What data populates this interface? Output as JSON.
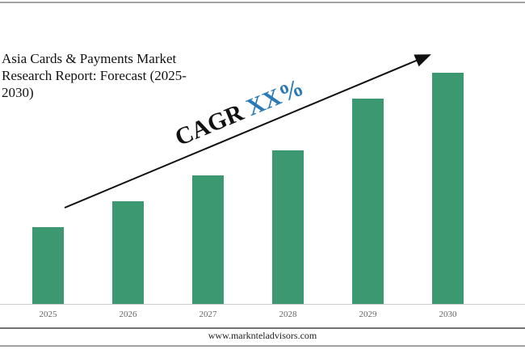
{
  "chart_data": {
    "type": "bar",
    "title": "Asia Cards & Payments Market Research Report: Forecast (2025-2030)",
    "categories": [
      "2025",
      "2026",
      "2027",
      "2028",
      "2029",
      "2030"
    ],
    "values": [
      95,
      127,
      159,
      190,
      254,
      286
    ],
    "color": "#3b9870",
    "annotation": {
      "text": "CAGR",
      "highlight": "XX%",
      "highlight_color": "#2a7ab8"
    },
    "footer": "www.marknteladvisors.com"
  }
}
